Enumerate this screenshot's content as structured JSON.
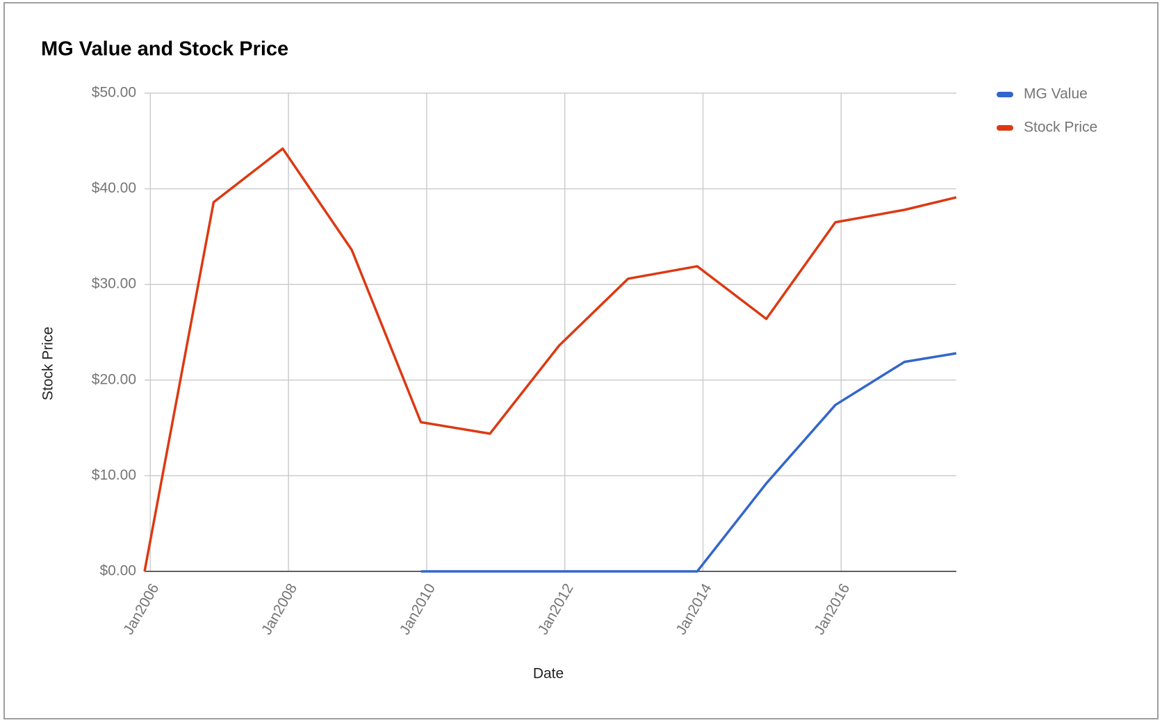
{
  "chart_data": {
    "type": "line",
    "title": "MG Value and Stock Price",
    "x_label": "Date",
    "y_label": "Stock Price",
    "x": [
      "2005-12",
      "2006-12",
      "2007-12",
      "2008-12",
      "2009-12",
      "2010-12",
      "2011-12",
      "2012-12",
      "2013-12",
      "2014-12",
      "2015-12",
      "2016-12",
      "2017-09"
    ],
    "series": [
      {
        "name": "MG Value",
        "color": "#3366cc",
        "values": [
          null,
          null,
          null,
          null,
          0,
          0,
          0,
          0,
          0,
          9.2,
          17.4,
          21.9,
          22.8
        ]
      },
      {
        "name": "Stock Price",
        "color": "#dc3912",
        "values": [
          0,
          38.6,
          44.2,
          33.6,
          15.6,
          14.4,
          23.6,
          30.6,
          31.9,
          26.4,
          36.5,
          37.8,
          39.1
        ]
      }
    ],
    "xlim": [
      "2005-12",
      "2017-09"
    ],
    "xticks": [
      {
        "value": "2006-01",
        "label": "Jan2006"
      },
      {
        "value": "2008-01",
        "label": "Jan2008"
      },
      {
        "value": "2010-01",
        "label": "Jan2010"
      },
      {
        "value": "2012-01",
        "label": "Jan2012"
      },
      {
        "value": "2014-01",
        "label": "Jan2014"
      },
      {
        "value": "2016-01",
        "label": "Jan2016"
      }
    ],
    "ylim": [
      0,
      50
    ],
    "yticks": [
      {
        "value": 0,
        "label": "$0.00"
      },
      {
        "value": 10,
        "label": "$10.00"
      },
      {
        "value": 20,
        "label": "$20.00"
      },
      {
        "value": 30,
        "label": "$30.00"
      },
      {
        "value": 40,
        "label": "$40.00"
      },
      {
        "value": 50,
        "label": "$50.00"
      }
    ],
    "grid": true,
    "legend": "top-right"
  }
}
